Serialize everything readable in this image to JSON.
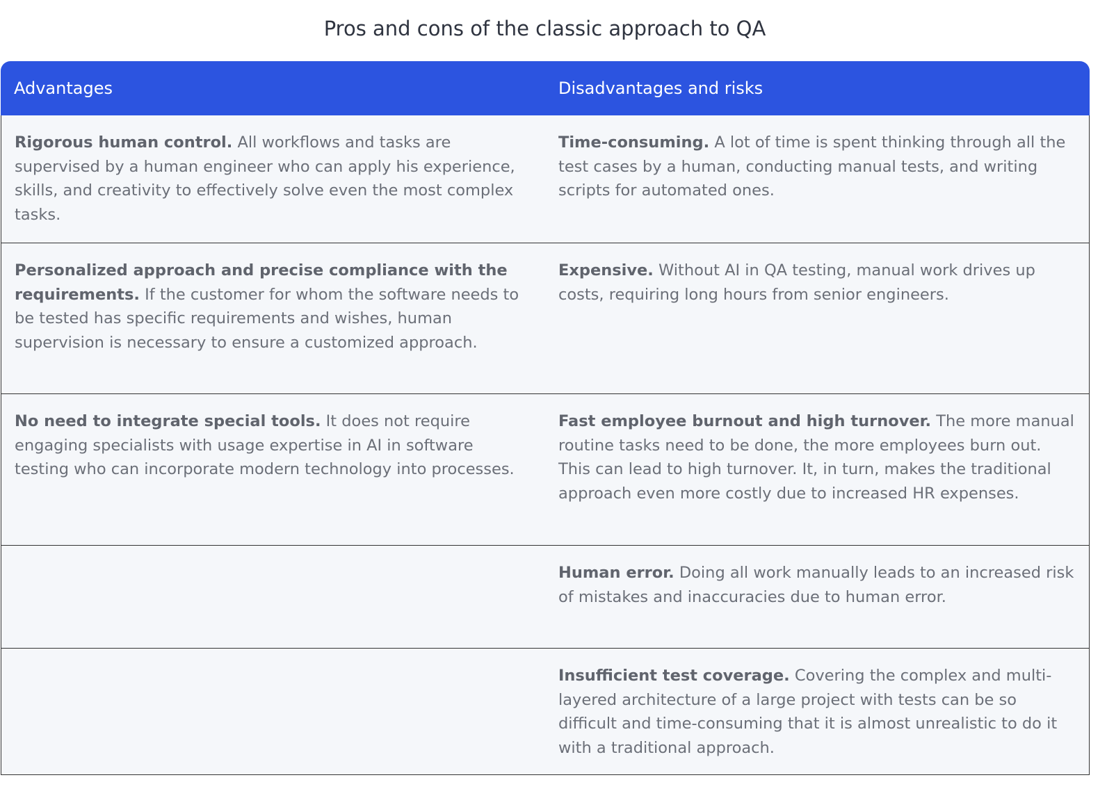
{
  "title": "Pros and cons of the classic approach to QA",
  "table": {
    "headers": [
      "Advantages",
      "Disadvantages and risks"
    ],
    "rows": [
      {
        "advantage": {
          "lead": "Rigorous human control.",
          "text": "All workflows and tasks are supervised by a human engineer who can apply his experience, skills, and creativity to effectively solve even the most complex tasks."
        },
        "disadvantage": {
          "lead": "Time-consuming.",
          "text": "A lot of time is spent thinking through all the test cases by a human, conducting manual tests, and writing scripts for automated ones."
        }
      },
      {
        "advantage": {
          "lead": "Personalized approach and precise compliance with the requirements.",
          "text": "If the customer for whom the software needs to be tested has specific requirements and wishes, human supervision is necessary to ensure a customized approach."
        },
        "disadvantage": {
          "lead": "Expensive.",
          "text": "Without AI in QA testing, manual work drives up costs, requiring long hours from senior engineers."
        }
      },
      {
        "advantage": {
          "lead": "No need to integrate special tools.",
          "text": "It does not require engaging specialists with usage expertise in AI in software testing who can incorporate modern technology into processes."
        },
        "disadvantage": {
          "lead": "Fast employee burnout and high turnover.",
          "text": "The more manual routine tasks need to be done, the more employees burn out. This can lead to high turnover. It, in turn, makes the traditional approach even more costly due to increased HR expenses."
        }
      },
      {
        "disadvantage": {
          "lead": "Human error.",
          "text": "Doing all work manually leads to an increased risk of mistakes and inaccuracies due to human error."
        }
      },
      {
        "disadvantage": {
          "lead": "Insufficient test coverage.",
          "text": "Covering the complex and multi-layered architecture of a large project with tests can be so difficult and time-consuming that it is almost unrealistic to do it with a traditional approach."
        }
      }
    ]
  }
}
